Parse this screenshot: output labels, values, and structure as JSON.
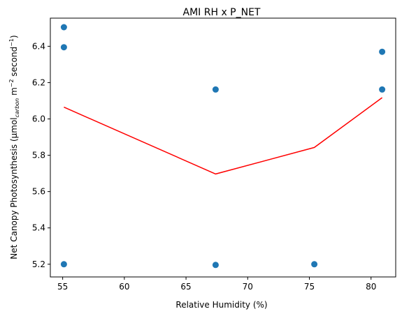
{
  "chart_data": {
    "type": "scatter",
    "title": "AMI RH x P_NET",
    "xlabel": "Relative Humidity (%)",
    "ylabel": {
      "prefix": "Net Canopy Photosynthesis (µmol",
      "subscript": "carbon",
      "middle": " m",
      "sup1": "−2",
      "after_sup1": " second",
      "sup2": "−1",
      "suffix": ")"
    },
    "xlim": [
      54.0,
      82.0
    ],
    "ylim": [
      5.13,
      6.555
    ],
    "xticks": [
      55,
      60,
      65,
      70,
      75,
      80
    ],
    "yticks": [
      5.2,
      5.4,
      5.6,
      5.8,
      6.0,
      6.2,
      6.4
    ],
    "xtick_labels": [
      "55",
      "60",
      "65",
      "70",
      "75",
      "80"
    ],
    "ytick_labels": [
      "5.2",
      "5.4",
      "5.6",
      "5.8",
      "6.0",
      "6.2",
      "6.4"
    ],
    "grid": false,
    "legend": "none",
    "series": [
      {
        "kind": "points",
        "color": "#1f77b4",
        "x": [
          55.1,
          55.1,
          55.1,
          67.4,
          67.4,
          75.4,
          80.9,
          80.9
        ],
        "y": [
          6.505,
          6.395,
          5.2,
          6.162,
          5.196,
          5.2,
          6.37,
          6.162
        ]
      },
      {
        "kind": "line",
        "color": "#ff0000",
        "x": [
          55.1,
          67.4,
          75.4,
          80.9
        ],
        "y": [
          6.065,
          5.697,
          5.843,
          6.117
        ]
      }
    ]
  }
}
